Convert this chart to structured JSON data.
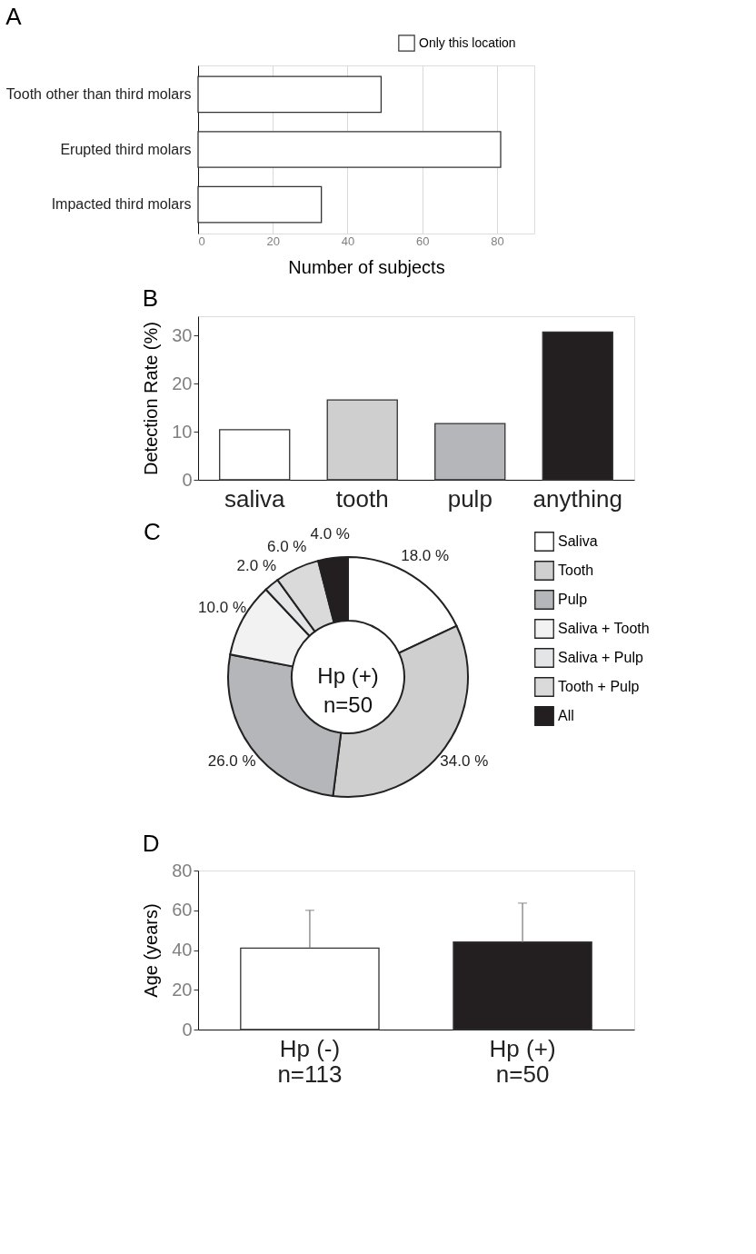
{
  "chart_data": [
    {
      "type": "bar",
      "title": "A",
      "orientation": "horizontal",
      "categories": [
        "Tooth other than third molars",
        "Erupted third molars",
        "Impacted third molars"
      ],
      "series": [
        {
          "name": "Only this location",
          "color": "#ffffff",
          "values": [
            49,
            81,
            33
          ]
        }
      ],
      "xlabel": "Number of subjects",
      "xlim": [
        0,
        90
      ],
      "xticks": [
        0,
        20,
        40,
        60,
        80
      ],
      "grid": "x",
      "legend": "top right"
    },
    {
      "type": "bar",
      "title": "B",
      "categories": [
        "saliva",
        "tooth",
        "pulp",
        "anything"
      ],
      "values": [
        10.4,
        16.6,
        11.7,
        30.7
      ],
      "colors": [
        "#ffffff",
        "#cfcfcf",
        "#b5b6b9",
        "#231f20"
      ],
      "ylabel": "Detection Rate  (%)",
      "ylim": [
        0,
        34
      ],
      "yticks": [
        0,
        10,
        20,
        30
      ],
      "grid": false
    },
    {
      "type": "donut",
      "title": "C",
      "categories": [
        "Saliva",
        "Tooth",
        "Pulp",
        "Saliva + Tooth",
        "Saliva + Pulp",
        "Tooth + Pulp",
        "All"
      ],
      "values": [
        18,
        34,
        26,
        10,
        2,
        6,
        4
      ],
      "value_labels": [
        "18.0 %",
        "34.0 %",
        "26.0 %",
        "10.0 %",
        "2.0 %",
        "6.0 %",
        "4.0 %"
      ],
      "colors": [
        "#ffffff",
        "#cfcfcf",
        "#b5b6b9",
        "#f2f2f2",
        "#e4e5e7",
        "#dadada",
        "#231f20"
      ],
      "annotations": [
        "Hp (+)\nn=50"
      ],
      "legend": "right"
    },
    {
      "type": "bar",
      "title": "D",
      "categories": [
        "Hp (-)\nn=113",
        "Hp (+)\nn=50"
      ],
      "values": [
        41,
        44
      ],
      "colors": [
        "#ffffff",
        "#231f20"
      ],
      "errors": [
        [
          41,
          60
        ],
        [
          44,
          63.6
        ]
      ],
      "ylabel": "Age  (years)",
      "ylim": [
        0,
        80
      ],
      "yticks": [
        0,
        20,
        40,
        60,
        80
      ],
      "grid": false
    }
  ]
}
